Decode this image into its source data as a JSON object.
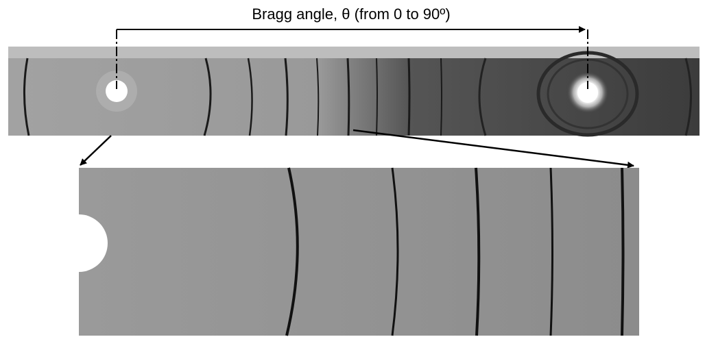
{
  "annotation": {
    "label": "Bragg angle, θ (from 0 to 90º)"
  }
}
